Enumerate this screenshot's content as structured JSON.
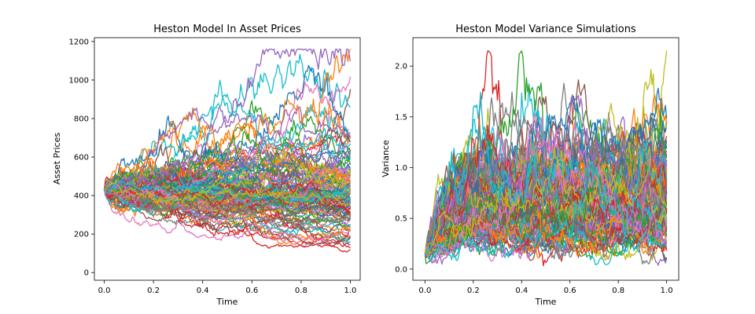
{
  "chart_data": [
    {
      "type": "line",
      "title": "Heston Model In Asset Prices",
      "xlabel": "Time",
      "ylabel": "Asset Prices",
      "xlim": [
        -0.04,
        1.04
      ],
      "ylim": [
        -40,
        1220
      ],
      "xticks": [
        "0.0",
        "0.2",
        "0.4",
        "0.6",
        "0.8",
        "1.0"
      ],
      "yticks": [
        "0",
        "200",
        "400",
        "600",
        "800",
        "1000",
        "1200"
      ],
      "grid": false,
      "legend": "none",
      "simulated_paths": {
        "start_value": 430,
        "x_start": 0.0,
        "x_end": 1.0,
        "min_value": 25,
        "max_value": 1160
      },
      "colors": [
        "#1f77b4",
        "#ff7f0e",
        "#2ca02c",
        "#d62728",
        "#9467bd",
        "#8c564b",
        "#e377c2",
        "#7f7f7f",
        "#bcbd22",
        "#17becf"
      ]
    },
    {
      "type": "line",
      "title": "Heston Model Variance Simulations",
      "xlabel": "Time",
      "ylabel": "Variance",
      "xlim": [
        -0.05,
        1.05
      ],
      "ylim": [
        -0.11,
        2.28
      ],
      "xticks": [
        "0.0",
        "0.2",
        "0.4",
        "0.6",
        "0.8",
        "1.0"
      ],
      "yticks": [
        "0.0",
        "0.5",
        "1.0",
        "1.5",
        "2.0"
      ],
      "grid": false,
      "legend": "none",
      "simulated_paths": {
        "start_value": 0.15,
        "x_start": 0.0,
        "x_end": 1.0,
        "min_value": 0.0,
        "max_value": 2.15
      },
      "colors": [
        "#1f77b4",
        "#ff7f0e",
        "#2ca02c",
        "#d62728",
        "#9467bd",
        "#8c564b",
        "#e377c2",
        "#7f7f7f",
        "#bcbd22",
        "#17becf"
      ]
    }
  ]
}
